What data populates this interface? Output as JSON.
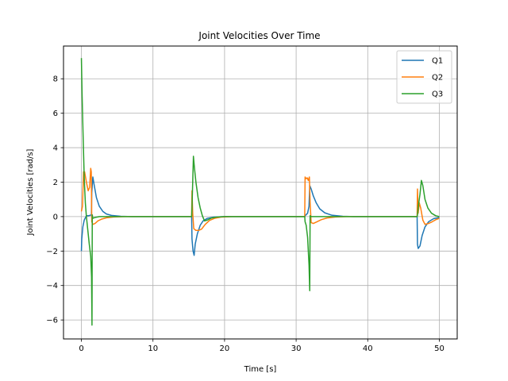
{
  "chart_data": {
    "type": "line",
    "title": "Joint Velocities Over Time",
    "xlabel": "Time [s]",
    "ylabel": "Joint Velocities [rad/s]",
    "xlim": [
      -2.5,
      52.5
    ],
    "ylim": [
      -7.1,
      9.9
    ],
    "xticks": [
      0,
      10,
      20,
      30,
      40,
      50
    ],
    "yticks": [
      -6,
      -4,
      -2,
      0,
      2,
      4,
      6,
      8
    ],
    "grid": true,
    "legend_position": "upper-right",
    "series": [
      {
        "name": "Q1",
        "color": "#1f77b4",
        "points": [
          [
            0,
            -2.0
          ],
          [
            0.05,
            -1.3
          ],
          [
            0.2,
            -0.6
          ],
          [
            0.4,
            -0.2
          ],
          [
            0.7,
            0.05
          ],
          [
            1.0,
            0.05
          ],
          [
            1.4,
            0.1
          ],
          [
            1.45,
            1.4
          ],
          [
            1.6,
            2.3
          ],
          [
            1.8,
            1.8
          ],
          [
            2.1,
            1.1
          ],
          [
            2.5,
            0.6
          ],
          [
            3.0,
            0.3
          ],
          [
            3.5,
            0.15
          ],
          [
            4.2,
            0.07
          ],
          [
            5.5,
            0.02
          ],
          [
            7,
            0.0
          ],
          [
            15.4,
            0.0
          ],
          [
            15.45,
            -1.3
          ],
          [
            15.6,
            -2.0
          ],
          [
            15.75,
            -2.25
          ],
          [
            15.9,
            -1.6
          ],
          [
            16.2,
            -1.0
          ],
          [
            16.6,
            -0.5
          ],
          [
            17.0,
            -0.25
          ],
          [
            17.6,
            -0.1
          ],
          [
            18.5,
            -0.03
          ],
          [
            20,
            0.0
          ],
          [
            31.2,
            0.0
          ],
          [
            31.25,
            0.05
          ],
          [
            31.6,
            0.2
          ],
          [
            31.8,
            0.6
          ],
          [
            31.9,
            1.8
          ],
          [
            32.1,
            1.6
          ],
          [
            32.4,
            1.2
          ],
          [
            32.8,
            0.8
          ],
          [
            33.3,
            0.45
          ],
          [
            34.0,
            0.22
          ],
          [
            35.0,
            0.08
          ],
          [
            36.5,
            0.02
          ],
          [
            38,
            0.0
          ],
          [
            46.9,
            0.0
          ],
          [
            46.95,
            -1.6
          ],
          [
            47.05,
            -1.85
          ],
          [
            47.3,
            -1.7
          ],
          [
            47.6,
            -1.1
          ],
          [
            48.0,
            -0.6
          ],
          [
            48.5,
            -0.3
          ],
          [
            49.2,
            -0.12
          ],
          [
            50,
            -0.05
          ]
        ]
      },
      {
        "name": "Q2",
        "color": "#ff7f0e",
        "points": [
          [
            0,
            0.3
          ],
          [
            0.15,
            0.6
          ],
          [
            0.3,
            2.6
          ],
          [
            0.45,
            2.6
          ],
          [
            0.7,
            2.0
          ],
          [
            0.95,
            1.5
          ],
          [
            1.15,
            1.7
          ],
          [
            1.3,
            2.8
          ],
          [
            1.38,
            2.6
          ],
          [
            1.45,
            -0.3
          ],
          [
            1.6,
            -0.45
          ],
          [
            1.9,
            -0.4
          ],
          [
            2.3,
            -0.25
          ],
          [
            2.8,
            -0.15
          ],
          [
            3.5,
            -0.07
          ],
          [
            4.5,
            -0.02
          ],
          [
            6,
            0.0
          ],
          [
            15.4,
            0.0
          ],
          [
            15.45,
            1.5
          ],
          [
            15.55,
            0.2
          ],
          [
            15.7,
            -0.7
          ],
          [
            16.0,
            -0.8
          ],
          [
            16.4,
            -0.8
          ],
          [
            16.8,
            -0.72
          ],
          [
            17.3,
            -0.45
          ],
          [
            17.9,
            -0.22
          ],
          [
            18.6,
            -0.1
          ],
          [
            19.5,
            -0.03
          ],
          [
            21,
            0.0
          ],
          [
            31.2,
            0.0
          ],
          [
            31.25,
            2.3
          ],
          [
            31.4,
            2.2
          ],
          [
            31.55,
            2.25
          ],
          [
            31.7,
            2.1
          ],
          [
            31.85,
            2.3
          ],
          [
            31.95,
            0.8
          ],
          [
            32.1,
            -0.35
          ],
          [
            32.4,
            -0.4
          ],
          [
            32.9,
            -0.3
          ],
          [
            33.5,
            -0.18
          ],
          [
            34.3,
            -0.08
          ],
          [
            35.5,
            -0.02
          ],
          [
            37,
            0.0
          ],
          [
            46.9,
            0.0
          ],
          [
            46.95,
            1.6
          ],
          [
            47.05,
            0.2
          ],
          [
            47.2,
            0.8
          ],
          [
            47.4,
            0.5
          ],
          [
            47.7,
            -0.2
          ],
          [
            48.0,
            -0.45
          ],
          [
            48.5,
            -0.4
          ],
          [
            49.0,
            -0.3
          ],
          [
            49.5,
            -0.18
          ],
          [
            50,
            -0.1
          ]
        ]
      },
      {
        "name": "Q3",
        "color": "#2ca02c",
        "points": [
          [
            0,
            9.2
          ],
          [
            0.1,
            7.0
          ],
          [
            0.25,
            4.5
          ],
          [
            0.4,
            2.2
          ],
          [
            0.55,
            0.8
          ],
          [
            0.7,
            0.0
          ],
          [
            0.9,
            -0.8
          ],
          [
            1.1,
            -1.6
          ],
          [
            1.3,
            -2.3
          ],
          [
            1.42,
            -3.5
          ],
          [
            1.48,
            -6.3
          ],
          [
            1.52,
            0.1
          ],
          [
            1.6,
            -0.1
          ],
          [
            1.9,
            -0.05
          ],
          [
            2.5,
            0.0
          ],
          [
            15.4,
            0.0
          ],
          [
            15.45,
            0.5
          ],
          [
            15.55,
            2.0
          ],
          [
            15.65,
            3.5
          ],
          [
            15.8,
            2.8
          ],
          [
            16.0,
            2.0
          ],
          [
            16.3,
            1.1
          ],
          [
            16.6,
            0.5
          ],
          [
            16.9,
            0.05
          ],
          [
            17.2,
            -0.25
          ],
          [
            17.6,
            -0.2
          ],
          [
            18.2,
            -0.08
          ],
          [
            19,
            -0.02
          ],
          [
            20,
            0.0
          ],
          [
            31.2,
            0.0
          ],
          [
            31.25,
            -0.3
          ],
          [
            31.4,
            -0.5
          ],
          [
            31.6,
            -1.2
          ],
          [
            31.8,
            -2.8
          ],
          [
            31.9,
            -4.3
          ],
          [
            31.95,
            0.05
          ],
          [
            32.1,
            0.0
          ],
          [
            46.9,
            0.0
          ],
          [
            46.95,
            0.1
          ],
          [
            47.1,
            0.7
          ],
          [
            47.3,
            1.3
          ],
          [
            47.5,
            2.1
          ],
          [
            47.7,
            1.8
          ],
          [
            48.0,
            1.0
          ],
          [
            48.4,
            0.5
          ],
          [
            48.9,
            0.2
          ],
          [
            49.5,
            0.05
          ],
          [
            50,
            0.0
          ]
        ]
      }
    ]
  }
}
